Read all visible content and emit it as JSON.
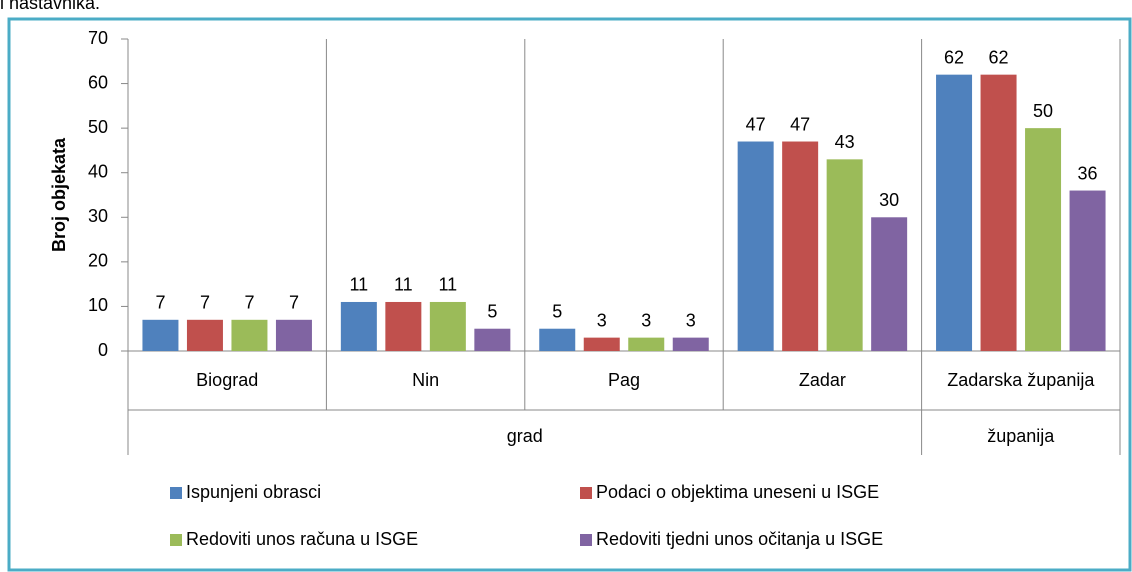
{
  "caption": "i nastavnika.",
  "chart_data": {
    "type": "bar",
    "y_label": "Broj objekata",
    "groups": [
      {
        "name": "grad",
        "categories": [
          "Biograd",
          "Nin",
          "Pag",
          "Zadar"
        ]
      },
      {
        "name": "županija",
        "categories": [
          "Zadarska županija"
        ]
      }
    ],
    "series": [
      {
        "name": "Ispunjeni obrasci",
        "color": "#4f81bd",
        "values": [
          7,
          11,
          5,
          47,
          62
        ]
      },
      {
        "name": "Podaci o objektima uneseni u ISGE",
        "color": "#c0504d",
        "values": [
          7,
          11,
          3,
          47,
          62
        ]
      },
      {
        "name": "Redoviti unos računa u ISGE",
        "color": "#9bbb59",
        "values": [
          7,
          11,
          3,
          43,
          50
        ]
      },
      {
        "name": "Redoviti tjedni unos očitanja u ISGE",
        "color": "#8064a2",
        "values": [
          7,
          5,
          3,
          30,
          36
        ]
      }
    ],
    "ylim": [
      0,
      70
    ],
    "yticks": [
      0,
      10,
      20,
      30,
      40,
      50,
      60,
      70
    ],
    "grid": false,
    "legend": "bottom"
  }
}
